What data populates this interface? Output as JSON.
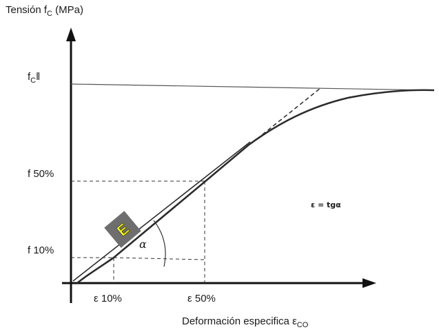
{
  "y_axis": {
    "title_prefix": "Tensión  f",
    "title_sub": "C",
    "title_suffix": " (MPa)"
  },
  "x_axis": {
    "title": "Deformación especifica   ε",
    "title_sub": "CO"
  },
  "y_ticks": {
    "fcu_prefix": "f",
    "fcu_sub": "C",
    "fcu_suffix": "ǁ",
    "f50": "f 50%",
    "f10": "f 10%"
  },
  "x_ticks": {
    "e10": "ε 10%",
    "e50": "ε 50%"
  },
  "annotations": {
    "badge": "E",
    "angle": "α",
    "formula": "ε = tgα"
  },
  "colors": {
    "curve": "#2b2b2b",
    "guides": "#333333",
    "badge_bg": "#6e6e6e",
    "badge_text": "#ffff00"
  }
}
